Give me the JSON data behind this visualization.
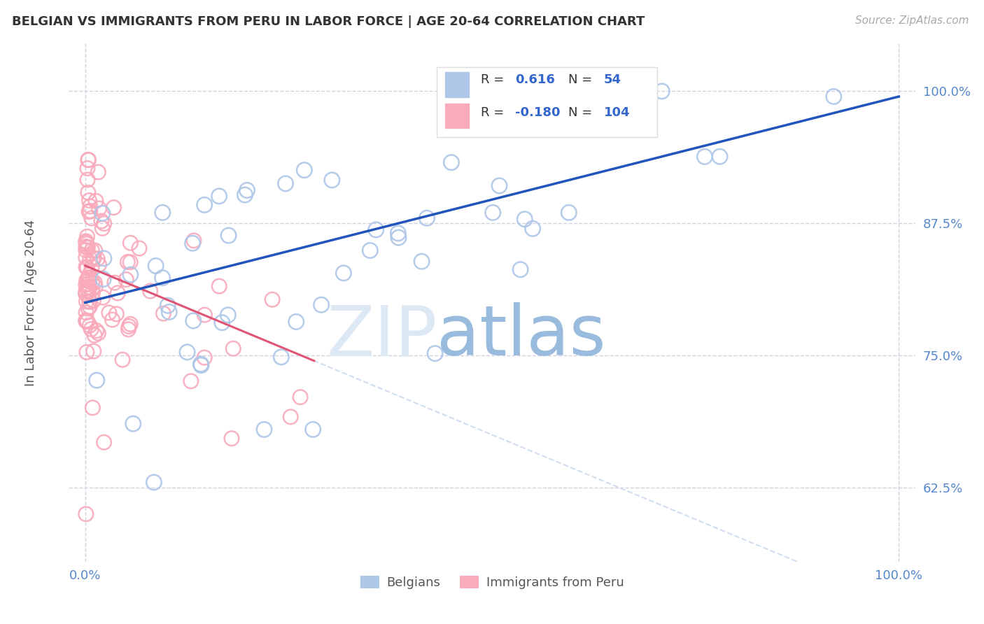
{
  "title": "BELGIAN VS IMMIGRANTS FROM PERU IN LABOR FORCE | AGE 20-64 CORRELATION CHART",
  "source_text": "Source: ZipAtlas.com",
  "ylabel": "In Labor Force | Age 20-64",
  "xlim": [
    -0.02,
    1.02
  ],
  "ylim": [
    0.555,
    1.045
  ],
  "yticks": [
    0.625,
    0.75,
    0.875,
    1.0
  ],
  "ytick_labels": [
    "62.5%",
    "75.0%",
    "87.5%",
    "100.0%"
  ],
  "belgians_color": "#aec6e8",
  "peru_color": "#f9aabb",
  "trend_blue_color": "#2255bb",
  "trend_pink_solid_color": "#e05575",
  "trend_dashed_color": "#c8d8ee",
  "r_value_color": "#3366cc",
  "grid_color": "#ccccdd",
  "background_color": "#ffffff",
  "title_color": "#333333",
  "axis_label_color": "#5588cc",
  "watermark_zip_color": "#dde8f5",
  "watermark_atlas_color": "#99bbdd"
}
